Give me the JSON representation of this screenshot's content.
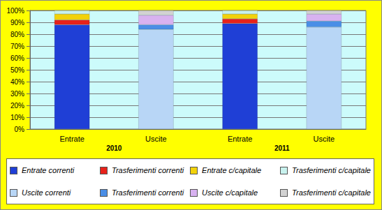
{
  "chart_data": {
    "type": "bar",
    "stacked": true,
    "grid": true,
    "categories": [
      "Entrate",
      "Uscite",
      "Entrate",
      "Uscite"
    ],
    "groups": [
      "2010",
      "2011"
    ],
    "ylim": [
      0,
      100
    ],
    "yticks": [
      {
        "value": 0,
        "label": "0%"
      },
      {
        "value": 10,
        "label": "10%"
      },
      {
        "value": 20,
        "label": "20%"
      },
      {
        "value": 30,
        "label": "30%"
      },
      {
        "value": 40,
        "label": "40%"
      },
      {
        "value": 50,
        "label": "50%"
      },
      {
        "value": 60,
        "label": "60%"
      },
      {
        "value": 70,
        "label": "70%"
      },
      {
        "value": 80,
        "label": "80%"
      },
      {
        "value": 90,
        "label": "90%"
      },
      {
        "value": 100,
        "label": "100%"
      }
    ],
    "series": [
      {
        "name": "Entrate correnti",
        "color": "#1f3fd6",
        "values": [
          88,
          null,
          89,
          null
        ]
      },
      {
        "name": "Trasferimenti correnti",
        "color": "#e8221a",
        "values": [
          4,
          null,
          4,
          null
        ]
      },
      {
        "name": "Entrate c/capitale",
        "color": "#f2d20a",
        "values": [
          5,
          null,
          4,
          null
        ]
      },
      {
        "name": "Trasferimenti c/capitale",
        "color": "#c8f2ee",
        "values": [
          3,
          null,
          3,
          null
        ]
      },
      {
        "name": "Uscite correnti",
        "color": "#b8d6f6",
        "values": [
          null,
          84,
          null,
          86
        ]
      },
      {
        "name": "Trasferimenti correnti",
        "color": "#4a8ee6",
        "values": [
          null,
          4,
          null,
          5
        ]
      },
      {
        "name": "Uscite c/capitale",
        "color": "#d8b2f0",
        "values": [
          null,
          8,
          null,
          6
        ]
      },
      {
        "name": "Trasferimenti c/capitale",
        "color": "#d2d2d2",
        "values": [
          null,
          4,
          null,
          3
        ]
      }
    ]
  }
}
